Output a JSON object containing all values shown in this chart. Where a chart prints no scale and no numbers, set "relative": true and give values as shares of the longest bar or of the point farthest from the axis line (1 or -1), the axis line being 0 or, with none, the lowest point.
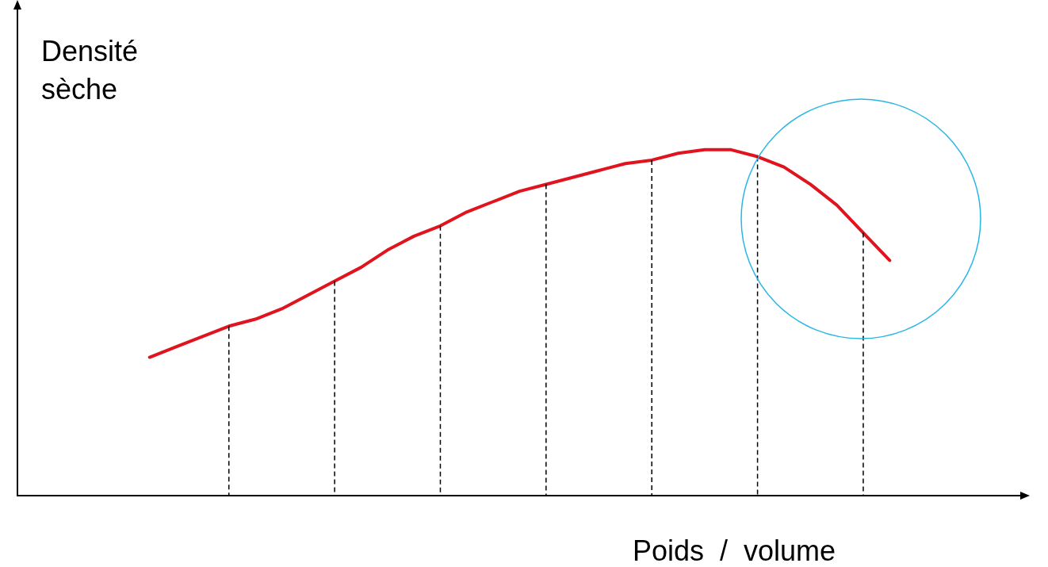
{
  "chart_data": {
    "type": "line",
    "relative": true,
    "grid": "x",
    "xlabel": "Poids  /  volume",
    "ylabel": "Densité\nsèche",
    "categories": [
      null,
      null,
      null,
      null,
      null,
      null,
      null,
      null,
      null,
      null,
      null,
      null,
      null,
      null,
      null,
      null,
      null,
      null,
      null,
      null,
      null,
      null,
      null,
      null,
      null,
      null,
      null,
      null,
      null,
      null,
      null,
      null,
      null,
      null,
      null,
      null,
      null,
      null,
      null
    ],
    "series": [
      {
        "color": "#e0141e",
        "values": [
          null,
          null,
          null,
          null,
          null,
          0.4,
          0.43,
          0.46,
          0.49,
          0.51,
          0.54,
          0.58,
          0.62,
          0.66,
          0.71,
          0.75,
          0.78,
          0.82,
          0.85,
          0.88,
          0.9,
          0.92,
          0.94,
          0.96,
          0.97,
          0.99,
          1.0,
          1.0,
          0.98,
          0.95,
          0.9,
          0.84,
          0.76,
          0.68,
          null,
          null,
          null,
          null,
          null
        ]
      }
    ]
  }
}
